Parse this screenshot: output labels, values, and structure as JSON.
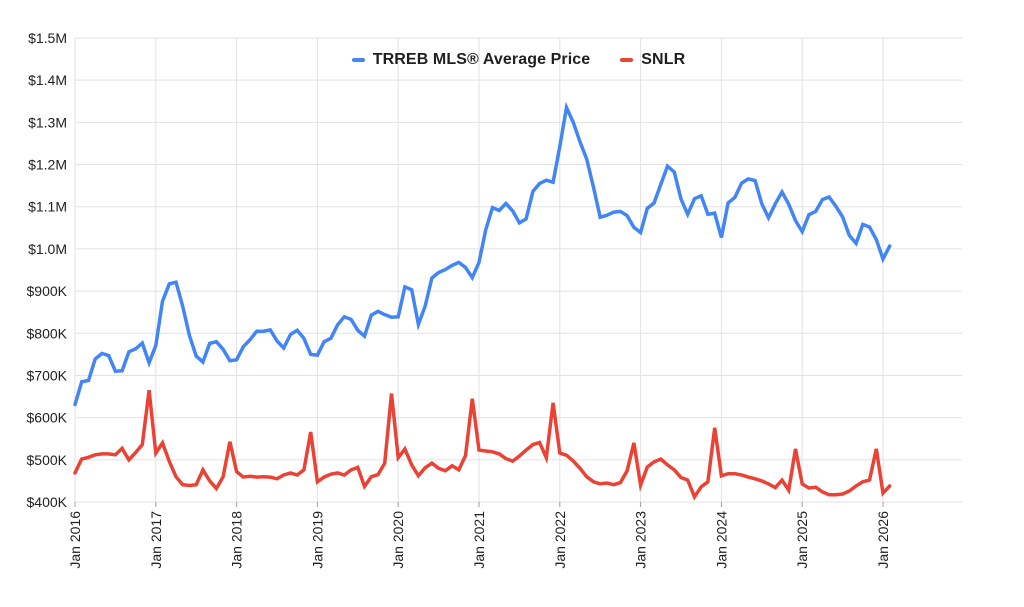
{
  "chart_data": {
    "type": "line",
    "title": "",
    "interval": "monthly",
    "x_start_label": "Jan 2016",
    "x_end_label": "Feb 2026",
    "grid": true,
    "legend_position": "top-center",
    "y_axis": {
      "unit": "CAD",
      "min_thousands": 400,
      "max_thousands": 1500,
      "tick_values_thousands": [
        1500,
        1400,
        1300,
        1200,
        1100,
        1000,
        900,
        800,
        700,
        600,
        500,
        400
      ],
      "tick_labels": [
        "$1.5M",
        "$1.4M",
        "$1.3M",
        "$1.2M",
        "$1.1M",
        "$1.0M",
        "$900K",
        "$800K",
        "$700K",
        "$600K",
        "$500K",
        "$400K"
      ]
    },
    "x_axis": {
      "tick_month_indices": [
        0,
        12,
        24,
        36,
        48,
        60,
        72,
        84,
        96,
        108,
        120
      ],
      "tick_labels": [
        "Jan 2016",
        "Jan 2017",
        "Jan 2018",
        "Jan 2019",
        "Jan 2020",
        "Jan 2021",
        "Jan 2022",
        "Jan 2023",
        "Jan 2024",
        "Jan 2025",
        "Jan 2026"
      ]
    },
    "series": [
      {
        "name": "TRREB MLS® Average Price",
        "color": "#4285f4",
        "values_thousands": [
          631,
          685,
          688,
          739,
          752,
          747,
          710,
          711,
          756,
          763,
          777,
          730,
          771,
          876,
          917,
          921,
          864,
          794,
          746,
          732,
          776,
          780,
          762,
          735,
          737,
          768,
          785,
          805,
          805,
          808,
          782,
          765,
          797,
          807,
          788,
          750,
          748,
          780,
          788,
          820,
          839,
          833,
          807,
          793,
          843,
          852,
          844,
          838,
          839,
          910,
          903,
          821,
          864,
          931,
          944,
          951,
          961,
          968,
          956,
          932,
          968,
          1045,
          1098,
          1091,
          1108,
          1090,
          1062,
          1071,
          1136,
          1155,
          1163,
          1158,
          1243,
          1335,
          1300,
          1254,
          1213,
          1146,
          1075,
          1080,
          1087,
          1089,
          1079,
          1051,
          1039,
          1096,
          1109,
          1153,
          1196,
          1182,
          1118,
          1082,
          1119,
          1126,
          1082,
          1085,
          1027,
          1109,
          1122,
          1156,
          1166,
          1162,
          1107,
          1074,
          1107,
          1135,
          1106,
          1067,
          1041,
          1081,
          1089,
          1117,
          1123,
          1101,
          1076,
          1032,
          1013,
          1058,
          1052,
          1022,
          976,
          1007
        ]
      },
      {
        "name": "SNLR",
        "color": "#ea4335",
        "values_thousands": [
          469,
          502,
          506,
          512,
          514,
          514,
          512,
          527,
          500,
          517,
          536,
          665,
          516,
          540,
          496,
          460,
          441,
          439,
          441,
          476,
          450,
          432,
          460,
          543,
          472,
          459,
          461,
          459,
          460,
          459,
          455,
          464,
          469,
          464,
          476,
          566,
          448,
          459,
          466,
          469,
          464,
          476,
          482,
          437,
          460,
          465,
          492,
          657,
          505,
          526,
          488,
          462,
          481,
          492,
          480,
          474,
          486,
          476,
          510,
          645,
          523,
          521,
          519,
          514,
          503,
          497,
          509,
          523,
          536,
          541,
          505,
          635,
          516,
          511,
          497,
          480,
          460,
          448,
          443,
          445,
          441,
          446,
          474,
          540,
          440,
          483,
          495,
          502,
          488,
          476,
          458,
          452,
          412,
          436,
          448,
          576,
          462,
          467,
          467,
          464,
          459,
          455,
          450,
          443,
          434,
          452,
          428,
          526,
          443,
          433,
          435,
          424,
          417,
          417,
          419,
          426,
          438,
          448,
          452,
          526,
          421,
          438
        ]
      }
    ]
  },
  "colors": {
    "gridline": "#e2e2e2",
    "axis_label": "#212121",
    "tick_mark": "#9e9e9e",
    "background": "#ffffff"
  }
}
